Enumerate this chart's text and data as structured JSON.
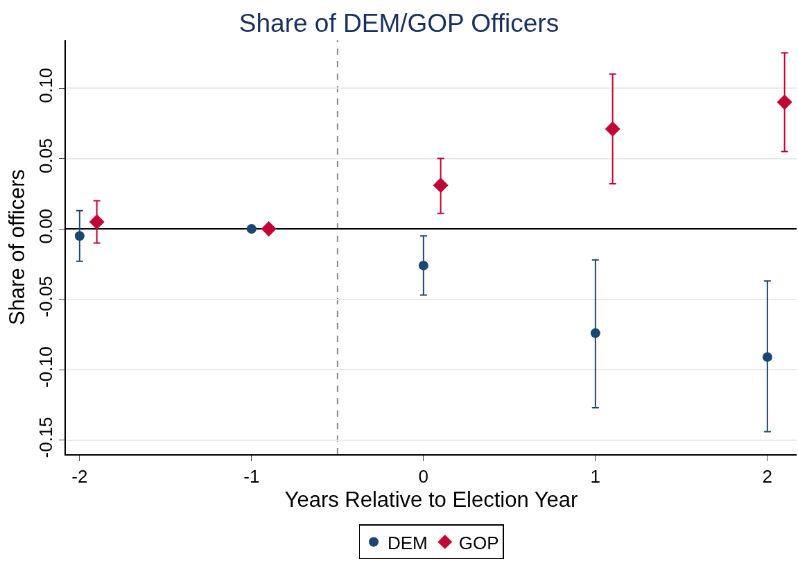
{
  "chart_data": {
    "type": "scatter",
    "title": "Share of DEM/GOP Officers",
    "xlabel": "Years Relative to Election Year",
    "ylabel": "Share of officers",
    "xlim": [
      -2.08,
      2.17
    ],
    "xticks": [
      {
        "value": -2,
        "label": "-2"
      },
      {
        "value": -1,
        "label": "-1"
      },
      0,
      1,
      2
    ],
    "ylim": [
      -0.16,
      0.134
    ],
    "yticks": [
      {
        "value": -0.15,
        "label": "-0.15"
      },
      {
        "value": -0.1,
        "label": "-0.10"
      },
      {
        "value": -0.05,
        "label": "-0.05"
      },
      {
        "value": 0,
        "label": "0.00"
      },
      {
        "value": 0.05,
        "label": "0.05"
      },
      {
        "value": 0.1,
        "label": "0.10"
      }
    ],
    "grid": "y",
    "legend": "bottom",
    "ref_lines": [
      {
        "axis": "y",
        "value": 0,
        "color": "#000000",
        "line_style": "solid"
      },
      {
        "axis": "x",
        "value": -0.5,
        "color": "#888888",
        "line_style": "dashed"
      }
    ],
    "series": [
      {
        "name": "DEM",
        "color": "#1a476f",
        "marker": "circle",
        "x": [
          -2,
          -1,
          0,
          1,
          2
        ],
        "values": [
          -0.005,
          0,
          -0.026,
          -0.074,
          -0.091
        ],
        "errors": [
          [
            -0.023,
            0.013
          ],
          null,
          [
            -0.047,
            -0.005
          ],
          [
            -0.127,
            -0.022
          ],
          [
            -0.144,
            -0.037
          ]
        ]
      },
      {
        "name": "GOP",
        "color": "#c10534",
        "marker": "diamond",
        "x": [
          -1.9,
          -0.9,
          0.1,
          1.1,
          2.1
        ],
        "values": [
          0.005,
          0,
          0.031,
          0.071,
          0.09
        ],
        "errors": [
          [
            -0.01,
            0.02
          ],
          null,
          [
            0.011,
            0.05
          ],
          [
            0.032,
            0.11
          ],
          [
            0.055,
            0.125
          ]
        ]
      }
    ]
  }
}
